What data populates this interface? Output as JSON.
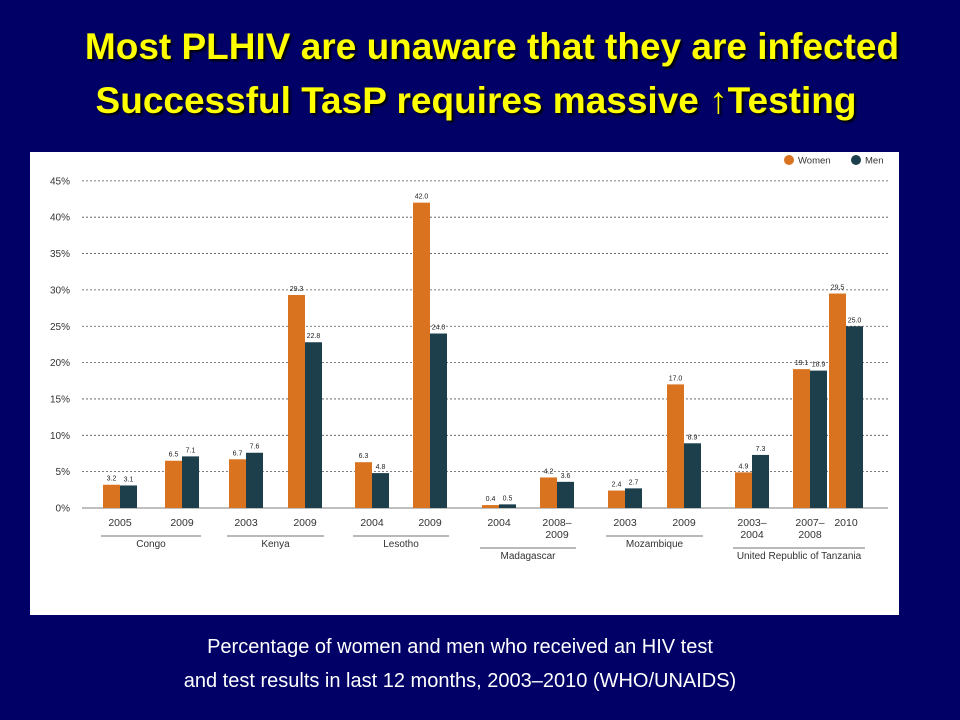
{
  "slide": {
    "title_line1": "Most PLHIV are unaware that they are infected",
    "title_line2": "Successful TasP  requires massive ↑Testing",
    "caption_line1": "Percentage of women and men who received an HIV test",
    "caption_line2": "and test results in last 12 months, 2003–2010 (WHO/UNAIDS)"
  },
  "colors": {
    "women": "#d9731f",
    "men": "#1d3f4c",
    "background": "#000066",
    "title": "#ffff00"
  },
  "chart_data": {
    "type": "bar",
    "ylim": [
      0,
      45
    ],
    "yticks": [
      0,
      5,
      10,
      15,
      20,
      25,
      30,
      35,
      40,
      45
    ],
    "ytick_labels": [
      "0%",
      "5%",
      "10%",
      "15%",
      "20%",
      "25%",
      "30%",
      "35%",
      "40%",
      "45%"
    ],
    "grid": true,
    "legend_position": "top-right",
    "series": [
      {
        "name": "Women",
        "values": [
          3.2,
          6.5,
          6.7,
          29.3,
          6.3,
          42.0,
          0.4,
          4.2,
          2.4,
          17.0,
          4.9,
          19.1,
          29.5
        ]
      },
      {
        "name": "Men",
        "values": [
          3.1,
          7.1,
          7.6,
          22.8,
          4.8,
          24.0,
          0.5,
          3.6,
          2.7,
          8.9,
          7.3,
          18.9,
          25.0
        ]
      }
    ],
    "value_labels_women": [
      "3.2",
      "6.5",
      "6.7",
      "29.3",
      "6.3",
      "42.0",
      "0.4",
      "4.2",
      "2.4",
      "17.0",
      "4.9",
      "19.1",
      "29.5"
    ],
    "value_labels_men": [
      "3.1",
      "7.1",
      "7.6",
      "22.8",
      "4.8",
      "24.0",
      "0.5",
      "3.6",
      "2.7",
      "8.9",
      "7.3",
      "18.9",
      "25.0"
    ],
    "categories": [
      "2005",
      "2009",
      "2003",
      "2009",
      "2004",
      "2009",
      "2004",
      "2008–2009",
      "2003",
      "2009",
      "2003–2004",
      "2007–2008",
      "2010"
    ],
    "category_lines": [
      [
        "2005"
      ],
      [
        "2009"
      ],
      [
        "2003"
      ],
      [
        "2009"
      ],
      [
        "2004"
      ],
      [
        "2009"
      ],
      [
        "2004"
      ],
      [
        "2008–",
        "2009"
      ],
      [
        "2003"
      ],
      [
        "2009"
      ],
      [
        "2003–",
        "2004"
      ],
      [
        "2007–",
        "2008"
      ],
      [
        "2010"
      ]
    ],
    "countries": [
      {
        "name": "Congo",
        "count": 2
      },
      {
        "name": "Kenya",
        "count": 2
      },
      {
        "name": "Lesotho",
        "count": 2
      },
      {
        "name": "Madagascar",
        "count": 2
      },
      {
        "name": "Mozambique",
        "count": 2
      },
      {
        "name": "United Republic of Tanzania",
        "count": 3
      }
    ]
  }
}
